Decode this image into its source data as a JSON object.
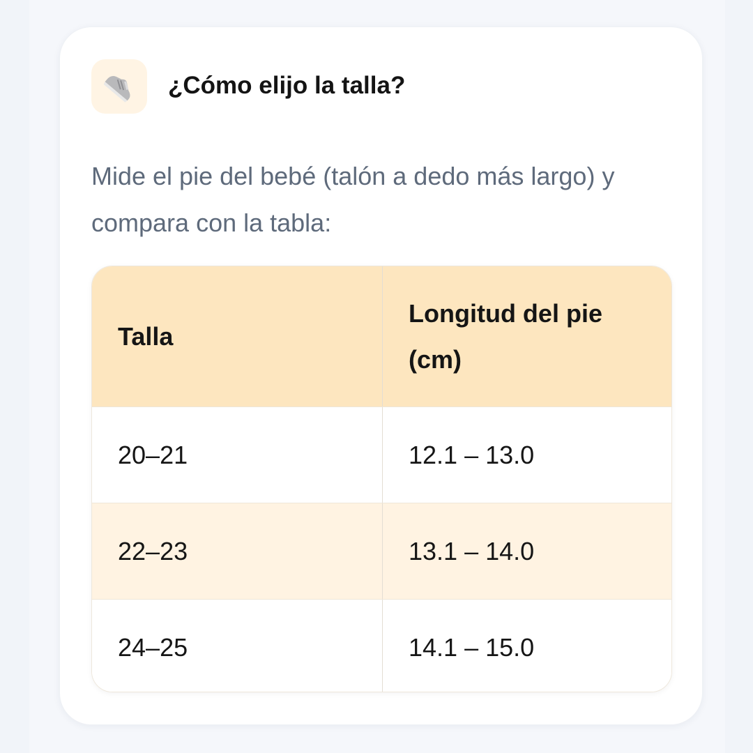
{
  "card": {
    "icon": "sneaker-icon",
    "title": "¿Cómo elijo la talla?",
    "description": "Mide el pie del bebé (talón a dedo más largo) y compara con la tabla:"
  },
  "table": {
    "headers": [
      "Talla",
      "Longitud del pie (cm)"
    ],
    "rows": [
      [
        "20–21",
        "12.1 – 13.0"
      ],
      [
        "22–23",
        "13.1 – 14.0"
      ],
      [
        "24–25",
        "14.1 – 15.0"
      ]
    ]
  },
  "colors": {
    "header_bg": "#fde6bf",
    "alt_row_bg": "#fff3e2",
    "icon_bg": "#fff4e4"
  }
}
